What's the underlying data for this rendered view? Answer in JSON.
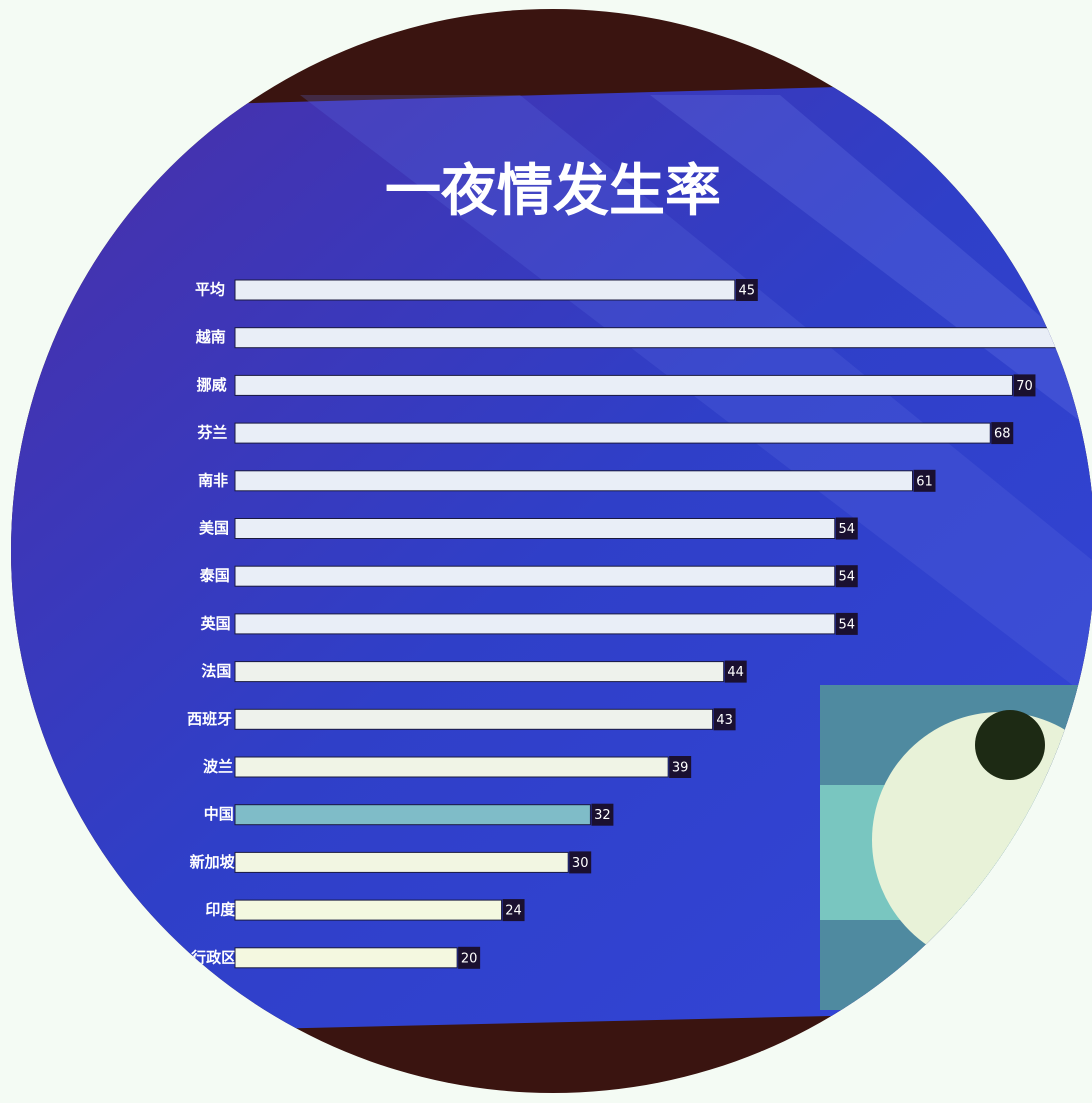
{
  "chart_data": {
    "type": "bar",
    "orientation": "horizontal",
    "title": "一夜情发生率",
    "categories": [
      "平均",
      "越南",
      "挪威",
      "芬兰",
      "南非",
      "美国",
      "泰国",
      "英国",
      "法国",
      "西班牙",
      "波兰",
      "中国",
      "新加坡",
      "印度",
      "行政区"
    ],
    "values": [
      45,
      76,
      70,
      68,
      61,
      54,
      54,
      54,
      44,
      43,
      39,
      32,
      30,
      24,
      20
    ],
    "value_labels": [
      "45",
      null,
      "70",
      "68",
      "61",
      "54",
      "54",
      "54",
      "44",
      "43",
      "39",
      "32",
      "30",
      "24",
      "20"
    ],
    "colors": [
      "#e9eef7",
      "#e9eef7",
      "#e9eef7",
      "#e9eef7",
      "#e9eef7",
      "#e9eef7",
      "#e9eef7",
      "#e9eef7",
      "#eef2ec",
      "#eef2ec",
      "#f0f4e6",
      "#7fbcc8",
      "#f2f6e2",
      "#f4f8e0",
      "#f4f8e0"
    ],
    "xlim": [
      0,
      75
    ]
  }
}
